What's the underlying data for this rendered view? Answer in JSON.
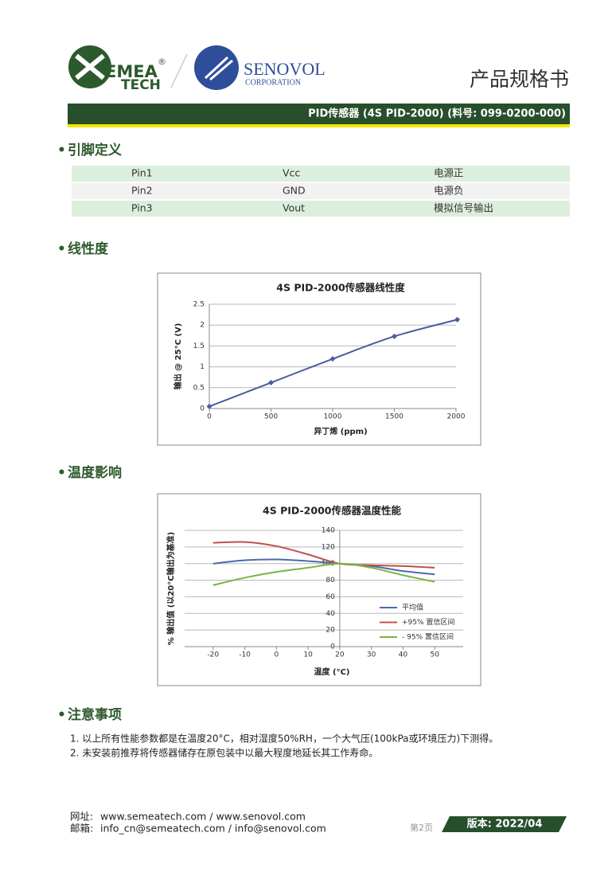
{
  "header": {
    "logo_left": {
      "name": "EMEA",
      "line2": "TECH",
      "reg": "®"
    },
    "logo_right": {
      "name": "SENOVOL",
      "line2": "CORPORATION"
    },
    "title": "产品规格书",
    "product": "PID传感器 (4S PID-2000) (料号: 099-0200-000)"
  },
  "pins": {
    "heading": "引脚定义",
    "rows": [
      [
        "Pin1",
        "Vcc",
        "电源正"
      ],
      [
        "Pin2",
        "GND",
        "电源负"
      ],
      [
        "Pin3",
        "Vout",
        "模拟信号输出"
      ]
    ]
  },
  "sections": {
    "linearity": "线性度",
    "temperature": "温度影响",
    "notes": "注意事项"
  },
  "notes": [
    "1. 以上所有性能参数都是在温度20°C，相对湿度50%RH，一个大气压(100kPa或环境压力)下测得。",
    "2. 未安装前推荐将传感器储存在原包装中以最大程度地延长其工作寿命。"
  ],
  "footer": {
    "web_label": "网址:",
    "web": "www.semeatech.com / www.senovol.com",
    "mail_label": "邮箱:",
    "mail": "info_cn@semeatech.com / info@senovol.com",
    "page": "第2页",
    "version": "版本: 2022/04"
  },
  "chart_data": [
    {
      "type": "line",
      "title": "4S PID-2000传感器线性度",
      "x_label": "异丁烯 (ppm)",
      "y_label": "输出 @ 25°C (V)",
      "x": [
        0,
        500,
        1000,
        1500,
        2010
      ],
      "values": [
        0.05,
        0.62,
        1.19,
        1.73,
        2.13
      ],
      "color": "#4a5d9b",
      "markers": true,
      "xlim": [
        0,
        2000
      ],
      "xticks": [
        0,
        500,
        1000,
        1500,
        2000
      ],
      "ylim": [
        0,
        2.5
      ],
      "yticks": [
        0,
        0.5,
        1,
        1.5,
        2,
        2.5
      ],
      "grid": true
    },
    {
      "type": "line",
      "title": "4S PID-2000传感器温度性能",
      "x_label": "温度 (°C)",
      "y_label": "% 输出值 (以20°C输出为基准)",
      "x": [
        -20,
        -10,
        0,
        10,
        20,
        30,
        40,
        50
      ],
      "series": [
        {
          "name": "平均值",
          "color": "#4a6aaa",
          "values": [
            100,
            104,
            105,
            103,
            100,
            97,
            91,
            87
          ]
        },
        {
          "name": "+95% 置信区间",
          "color": "#c0504d",
          "values": [
            125,
            126,
            121,
            111,
            100,
            98,
            97,
            95
          ]
        },
        {
          "name": "- 95% 置信区间",
          "color": "#77b543",
          "values": [
            74,
            83,
            90,
            95,
            100,
            95,
            86,
            78
          ]
        }
      ],
      "xlim": [
        -29,
        59
      ],
      "xticks": [
        -20,
        -10,
        0,
        10,
        20,
        30,
        40,
        50
      ],
      "ylim": [
        0,
        140
      ],
      "yticks": [
        0,
        20,
        40,
        60,
        80,
        100,
        120,
        140
      ],
      "y_axis_at": 20,
      "grid": true,
      "legend": "right"
    }
  ]
}
